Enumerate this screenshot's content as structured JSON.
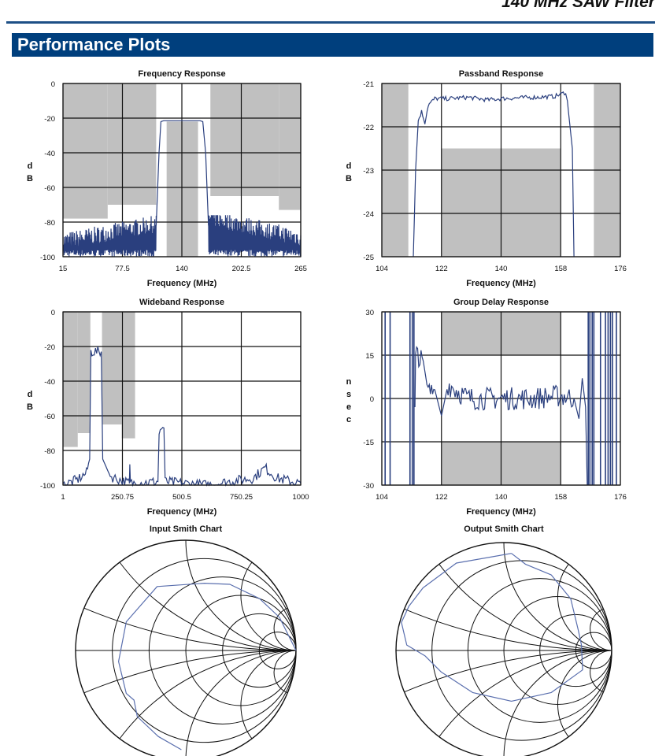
{
  "header": {
    "doc_title": "140 MHz SAW Filter",
    "section_title": "Performance Plots"
  },
  "colors": {
    "trace": "#2a3f7e",
    "mask": "#c0c0c0",
    "grid": "#111111",
    "banner": "#003f7d"
  },
  "chart_data": [
    {
      "id": "freq",
      "type": "line",
      "title": "Frequency Response",
      "xlabel": "Frequency (MHz)",
      "ylabel": "dB",
      "xlim": [
        15,
        265
      ],
      "ylim": [
        -100,
        0
      ],
      "xticks": [
        "15",
        "77.5",
        "140",
        "202.5",
        "265"
      ],
      "yticks": [
        "0",
        "-20",
        "-40",
        "-60",
        "-80",
        "-100"
      ],
      "masks": [
        [
          15,
          62,
          -78,
          0
        ],
        [
          62,
          113,
          -70,
          0
        ],
        [
          124,
          157,
          -100,
          -22
        ],
        [
          170,
          242,
          -65,
          0
        ],
        [
          242,
          265,
          -73,
          0
        ]
      ],
      "trace": [
        [
          113,
          -82
        ],
        [
          116,
          -40
        ],
        [
          118,
          -22
        ],
        [
          121,
          -21.5
        ],
        [
          140,
          -21.5
        ],
        [
          159,
          -21.5
        ],
        [
          162,
          -22
        ],
        [
          165,
          -40
        ],
        [
          168,
          -82
        ]
      ],
      "noise": [
        {
          "x": [
            15,
            113
          ],
          "y": [
            -100,
            -95
          ],
          "top_end": -82
        },
        {
          "x": [
            168,
            265
          ],
          "y": [
            -100,
            -93
          ],
          "top_end": -90
        }
      ]
    },
    {
      "id": "pass",
      "type": "line",
      "title": "Passband Response",
      "xlabel": "Frequency (MHz)",
      "ylabel": "dB",
      "xlim": [
        104,
        176
      ],
      "ylim": [
        -25,
        -21
      ],
      "xticks": [
        "104",
        "122",
        "140",
        "158",
        "176"
      ],
      "yticks": [
        "-21",
        "-22",
        "-23",
        "-24",
        "-25"
      ],
      "masks": [
        [
          104,
          112,
          -25,
          -21
        ],
        [
          122,
          158,
          -25,
          -22.5
        ],
        [
          168,
          176,
          -25,
          -21
        ]
      ],
      "trace": [
        [
          113.5,
          -25
        ],
        [
          114.2,
          -23
        ],
        [
          115,
          -21.85
        ],
        [
          116,
          -21.65
        ],
        [
          117,
          -21.9
        ],
        [
          118,
          -21.5
        ],
        [
          120,
          -21.35
        ],
        [
          124,
          -21.35
        ],
        [
          130,
          -21.32
        ],
        [
          136,
          -21.38
        ],
        [
          140,
          -21.35
        ],
        [
          146,
          -21.33
        ],
        [
          150,
          -21.32
        ],
        [
          156,
          -21.3
        ],
        [
          158,
          -21.25
        ],
        [
          159.5,
          -21.2
        ],
        [
          160,
          -21.4
        ],
        [
          161.5,
          -22.5
        ],
        [
          162,
          -25
        ]
      ],
      "noise_amp": 0.05
    },
    {
      "id": "wide",
      "type": "line",
      "title": "Wideband Response",
      "xlabel": "Frequency (MHz)",
      "ylabel": "dB",
      "xlim": [
        1,
        1000
      ],
      "ylim": [
        -100,
        0
      ],
      "xticks": [
        "1",
        "250.75",
        "500.5",
        "750.25",
        "1000"
      ],
      "yticks": [
        "0",
        "-20",
        "-40",
        "-60",
        "-80",
        "-100"
      ],
      "masks": [
        [
          1,
          63,
          -78,
          0
        ],
        [
          63,
          116,
          -70,
          0
        ],
        [
          165,
          248,
          -65,
          0
        ],
        [
          248,
          304,
          -73,
          0
        ]
      ],
      "trace": [
        [
          1,
          -100
        ],
        [
          60,
          -97
        ],
        [
          100,
          -93
        ],
        [
          113,
          -85
        ],
        [
          118,
          -23
        ],
        [
          162,
          -23
        ],
        [
          168,
          -85
        ],
        [
          200,
          -95
        ],
        [
          280,
          -99
        ],
        [
          280,
          -99
        ],
        [
          282,
          -88
        ],
        [
          284,
          -99
        ],
        [
          400,
          -98
        ],
        [
          405,
          -70
        ],
        [
          415,
          -67
        ],
        [
          425,
          -67
        ],
        [
          430,
          -98
        ],
        [
          600,
          -100
        ],
        [
          800,
          -96
        ],
        [
          850,
          -90
        ],
        [
          900,
          -96
        ],
        [
          1000,
          -99
        ]
      ],
      "noise_amp": 3
    },
    {
      "id": "gd",
      "type": "line",
      "title": "Group Delay Response",
      "xlabel": "Frequency (MHz)",
      "ylabel": "nsec",
      "xlim": [
        104,
        176
      ],
      "ylim": [
        -30,
        30
      ],
      "xticks": [
        "104",
        "122",
        "140",
        "158",
        "176"
      ],
      "yticks": [
        "30",
        "15",
        "0",
        "-15",
        "-30"
      ],
      "masks": [
        [
          122,
          158,
          15,
          30
        ],
        [
          122,
          158,
          -30,
          -15
        ]
      ],
      "verticals": [
        105,
        106.5,
        112.5,
        113.2,
        113.7,
        166.3,
        166.8,
        167.5,
        168,
        170,
        171.5,
        172.3,
        173,
        173.6,
        174.8
      ],
      "trace": [
        [
          114,
          -3
        ],
        [
          114.2,
          13
        ],
        [
          114.8,
          17
        ],
        [
          115.5,
          13
        ],
        [
          116.5,
          13
        ],
        [
          118,
          2
        ],
        [
          120,
          3
        ],
        [
          122,
          -6
        ],
        [
          124,
          5
        ],
        [
          130,
          0
        ],
        [
          140,
          0
        ],
        [
          150,
          0
        ],
        [
          158,
          1
        ],
        [
          162,
          0
        ],
        [
          163.5,
          -7
        ],
        [
          164.5,
          7
        ],
        [
          165.5,
          -3
        ],
        [
          166,
          -30
        ]
      ],
      "noise_amp": 4
    }
  ],
  "smith_charts": [
    {
      "id": "input",
      "title": "Input Smith Chart",
      "trace": [
        [
          1,
          0
        ],
        [
          0.85,
          0.3
        ],
        [
          0.67,
          0.47
        ],
        [
          0.4,
          0.6
        ],
        [
          0.17,
          0.61
        ],
        [
          -0.26,
          0.58
        ],
        [
          -0.54,
          0.26
        ],
        [
          -0.61,
          -0.1
        ],
        [
          -0.54,
          -0.39
        ],
        [
          -0.47,
          -0.45
        ],
        [
          -0.44,
          -0.6
        ],
        [
          -0.25,
          -0.78
        ],
        [
          -0.04,
          -0.9
        ]
      ]
    },
    {
      "id": "output",
      "title": "Output Smith Chart",
      "trace": [
        [
          0.07,
          0.9
        ],
        [
          -0.44,
          0.81
        ],
        [
          -0.75,
          0.58
        ],
        [
          -0.88,
          0.41
        ],
        [
          -0.95,
          0.26
        ],
        [
          -0.9,
          0.05
        ],
        [
          -0.73,
          -0.05
        ],
        [
          -0.58,
          -0.2
        ],
        [
          -0.29,
          -0.39
        ],
        [
          0.07,
          -0.47
        ],
        [
          0.44,
          -0.39
        ],
        [
          0.73,
          -0.18
        ],
        [
          0.72,
          0.05
        ],
        [
          0.69,
          0.19
        ],
        [
          0.62,
          0.48
        ],
        [
          0.44,
          0.7
        ],
        [
          0.2,
          0.8
        ],
        [
          0.07,
          0.9
        ]
      ]
    }
  ]
}
